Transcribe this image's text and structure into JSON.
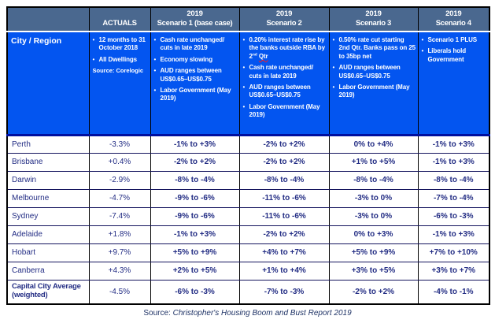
{
  "colors": {
    "header_bg": "#4A688F",
    "band_bg": "#0355F0",
    "band_bottom_border": "#000f9f",
    "data_text": "#232D84",
    "spellcheck_underline": "#ff1a1a"
  },
  "chart_data": {
    "type": "table",
    "city_region_label": "City / Region",
    "columns": [
      {
        "year": "",
        "name": "ACTUALS",
        "bullets": [
          [
            {
              "t": "12 months to 31 October 2018"
            }
          ],
          [
            {
              "t": "All Dwellings"
            }
          ]
        ],
        "source_note": "Source: Corelogic"
      },
      {
        "year": "2019",
        "name": "Scenario 1 (base case)",
        "bullets": [
          [
            {
              "t": "Cash rate unchanged/ cuts in late 2019"
            }
          ],
          [
            {
              "t": "Economy slowing"
            }
          ],
          [
            {
              "t": "AUD ranges between US$0.65–US$0.75"
            }
          ],
          [
            {
              "t": "Labor Government (May 2019)"
            }
          ]
        ]
      },
      {
        "year": "2019",
        "name": "Scenario 2",
        "bullets": [
          [
            {
              "t": "0.20% interest rate rise by the banks outside RBA by 2"
            },
            {
              "t": "nd",
              "sup": true
            },
            {
              "t": " "
            },
            {
              "t": "Qtr",
              "wavy": true
            }
          ],
          [
            {
              "t": "Cash rate unchanged/ cuts in late 2019"
            }
          ],
          [
            {
              "t": "AUD ranges between US$0.65–US$0.75"
            }
          ],
          [
            {
              "t": "Labor Government (May 2019)"
            }
          ]
        ]
      },
      {
        "year": "2019",
        "name": "Scenario 3",
        "bullets": [
          [
            {
              "t": "0.50% rate cut starting 2nd Qtr.  Banks pass on 25 to 35bp net"
            }
          ],
          [
            {
              "t": "AUD ranges between US$0.65–US$0.75"
            }
          ],
          [
            {
              "t": "Labor Government (May 2019)"
            }
          ]
        ]
      },
      {
        "year": "2019",
        "name": "Scenario 4",
        "bullets": [
          [
            {
              "t": "Scenario 1 PLUS"
            }
          ],
          [
            {
              "t": "Liberals hold Government"
            }
          ]
        ]
      }
    ],
    "rows": [
      {
        "city": "Perth",
        "values": [
          "-3.3%",
          "-1% to +3%",
          "-2% to +2%",
          "0% to +4%",
          "-1% to +3%"
        ]
      },
      {
        "city": "Brisbane",
        "values": [
          "+0.4%",
          "-2% to +2%",
          "-2% to +2%",
          "+1% to +5%",
          "-1% to +3%"
        ]
      },
      {
        "city": "Darwin",
        "values": [
          "-2.9%",
          "-8% to -4%",
          "-8% to -4%",
          "-8% to -4%",
          "-8% to -4%"
        ]
      },
      {
        "city": "Melbourne",
        "values": [
          "-4.7%",
          "-9% to -6%",
          "-11% to -6%",
          "-3% to 0%",
          "-7% to -4%"
        ]
      },
      {
        "city": "Sydney",
        "values": [
          "-7.4%",
          "-9% to -6%",
          "-11% to -6%",
          "-3% to 0%",
          "-6% to -3%"
        ]
      },
      {
        "city": "Adelaide",
        "values": [
          "+1.8%",
          "-1% to +3%",
          "-2% to +2%",
          "0% to +3%",
          "-1% to +3%"
        ]
      },
      {
        "city": "Hobart",
        "values": [
          "+9.7%",
          "+5% to +9%",
          "+4% to +7%",
          "+5% to +9%",
          "+7% to +10%"
        ]
      },
      {
        "city": "Canberra",
        "values": [
          "+4.3%",
          "+2% to +5%",
          "+1% to +4%",
          "+3% to +5%",
          "+3% to +7%"
        ]
      },
      {
        "city": "Capital City Average (weighted)",
        "values": [
          "-4.5%",
          "-6% to -3%",
          "-7% to -3%",
          "-2% to +2%",
          "-4% to -1%"
        ]
      }
    ],
    "footer": {
      "source_label": "Source: ",
      "source_title": "Christopher's Housing Boom and Bust Report 2019"
    }
  }
}
